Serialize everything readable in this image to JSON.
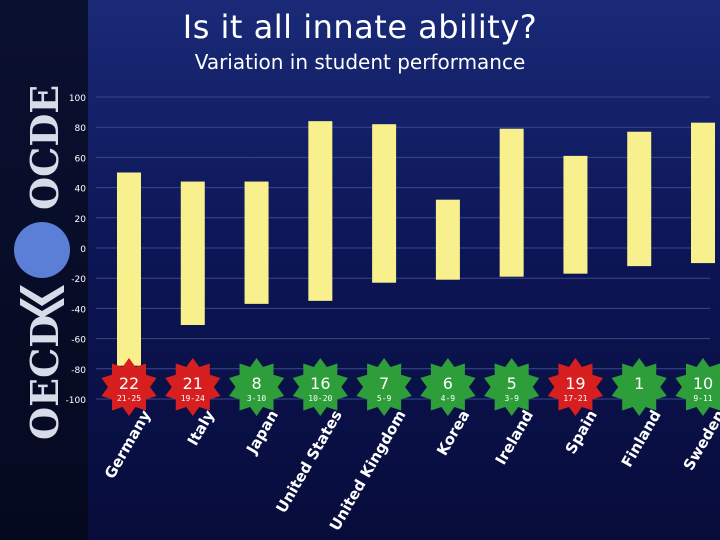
{
  "slide": {
    "title": "Is it all innate ability?",
    "subtitle": "Variation in student performance",
    "logo_text_top": "OCDE",
    "logo_text_bottom": "OECD"
  },
  "colors": {
    "background": "#0d1656",
    "bar": "#f7f08c",
    "star": "#2e9e3a",
    "star_red": "#d81f1f",
    "logo_circle": "#5b7fd6"
  },
  "chart_data": {
    "type": "bar",
    "title": "",
    "xlabel": "",
    "ylabel": "",
    "ylim": [
      -100,
      100
    ],
    "yticks": [
      100,
      80,
      60,
      40,
      20,
      0,
      -20,
      -40,
      -60,
      -80,
      -100
    ],
    "grid": true,
    "categories": [
      "Germany",
      "Italy",
      "Japan",
      "United States",
      "United Kingdom",
      "Korea",
      "Ireland",
      "Spain",
      "Finland",
      "Sweden"
    ],
    "ranges": [
      [
        -78,
        50
      ],
      [
        -51,
        44
      ],
      [
        -37,
        44
      ],
      [
        -35,
        84
      ],
      [
        -23,
        82
      ],
      [
        -21,
        32
      ],
      [
        -19,
        79
      ],
      [
        -17,
        61
      ],
      [
        -12,
        77
      ],
      [
        -10,
        83
      ]
    ],
    "badges": [
      {
        "value": "22",
        "range": "21-25",
        "color": "red"
      },
      {
        "value": "21",
        "range": "19-24",
        "color": "red"
      },
      {
        "value": "8",
        "range": "3-10",
        "color": "green"
      },
      {
        "value": "16",
        "range": "10-20",
        "color": "green"
      },
      {
        "value": "7",
        "range": "5-9",
        "color": "green"
      },
      {
        "value": "6",
        "range": "4-9",
        "color": "green"
      },
      {
        "value": "5",
        "range": "3-9",
        "color": "green"
      },
      {
        "value": "19",
        "range": "17-21",
        "color": "red"
      },
      {
        "value": "1",
        "range": "",
        "color": "green"
      },
      {
        "value": "10",
        "range": "9-11",
        "color": "green"
      }
    ]
  }
}
